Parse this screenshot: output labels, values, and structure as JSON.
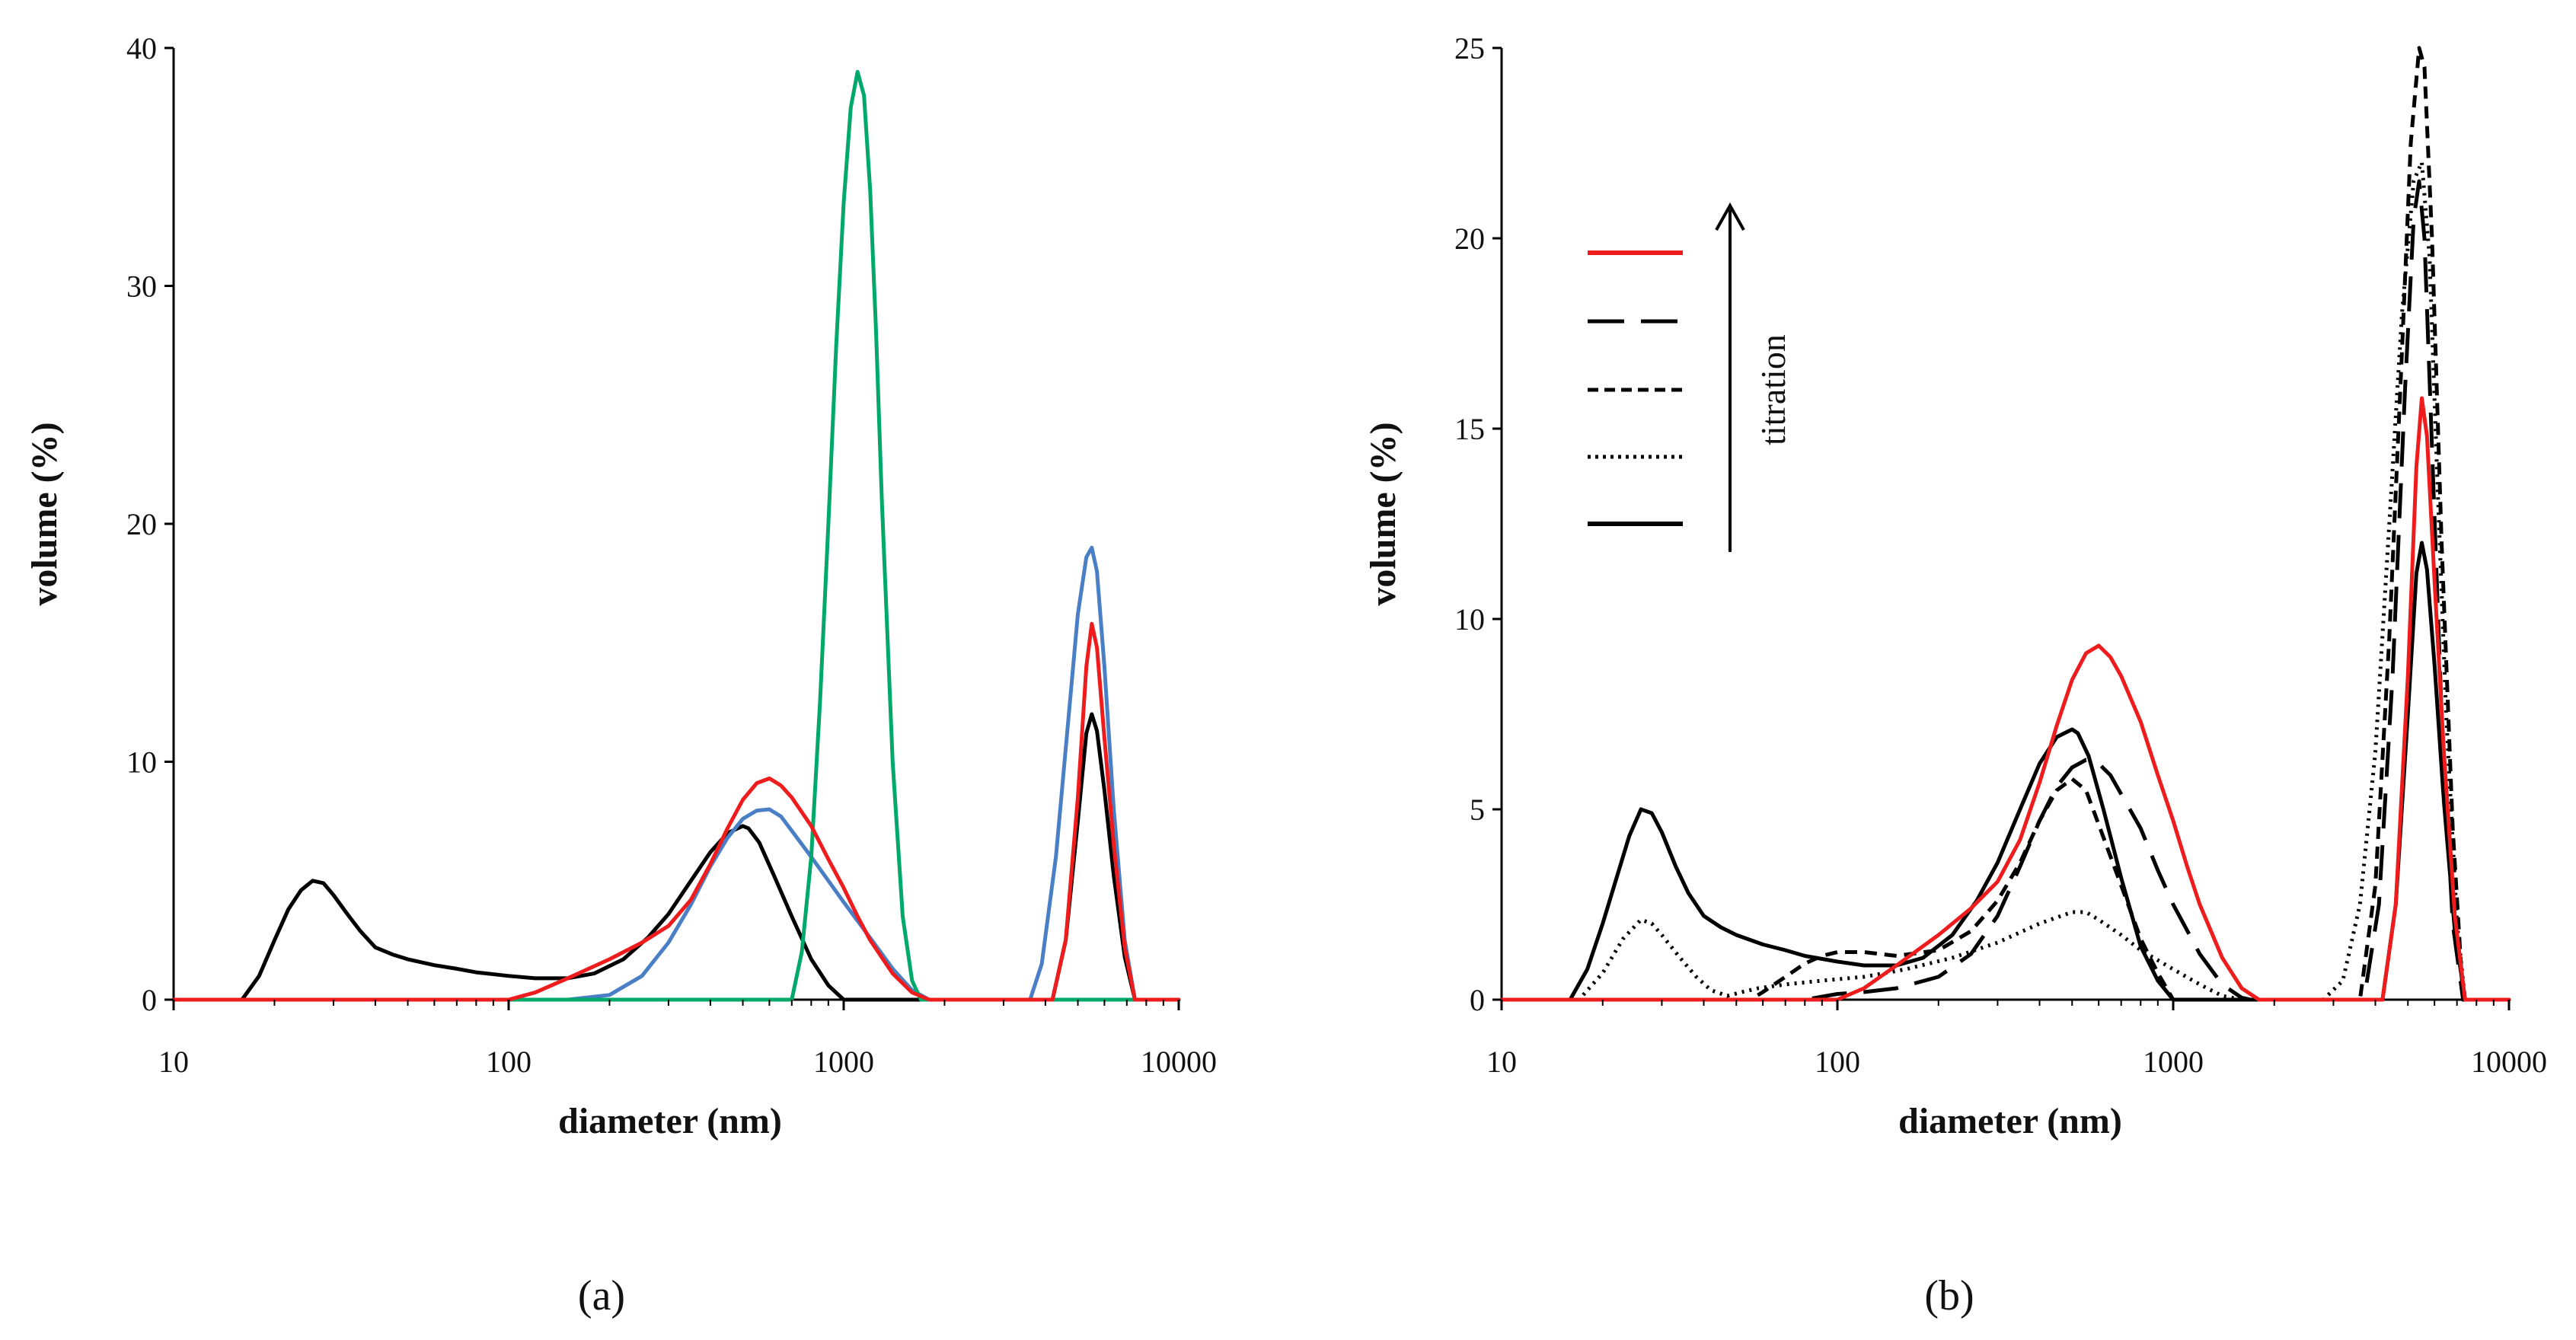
{
  "chart_data": [
    {
      "panel": "(a)",
      "type": "line",
      "xscale": "log",
      "xlabel": "diameter (nm)",
      "ylabel": "volume (%)",
      "xlim": [
        10,
        10000
      ],
      "ylim": [
        0,
        40
      ],
      "xticks": [
        10,
        100,
        1000,
        10000
      ],
      "xtick_labels": [
        "10",
        "100",
        "1000",
        "10000"
      ],
      "yticks": [
        0,
        10,
        20,
        30,
        40
      ],
      "ytick_labels": [
        "0",
        "10",
        "20",
        "30",
        "40"
      ],
      "series": [
        {
          "name": "black",
          "color": "#000000",
          "dash": "solid",
          "x": [
            10,
            16,
            18,
            20,
            22,
            24,
            26,
            28,
            30,
            33,
            36,
            40,
            45,
            50,
            60,
            70,
            80,
            100,
            120,
            150,
            180,
            220,
            260,
            300,
            350,
            400,
            450,
            500,
            520,
            560,
            620,
            700,
            800,
            900,
            1000,
            10000
          ],
          "y": [
            0,
            0,
            1.0,
            2.5,
            3.8,
            4.6,
            5.0,
            4.9,
            4.4,
            3.6,
            2.9,
            2.2,
            1.9,
            1.7,
            1.45,
            1.3,
            1.15,
            1.0,
            0.9,
            0.9,
            1.1,
            1.7,
            2.6,
            3.6,
            5.0,
            6.2,
            7.0,
            7.3,
            7.2,
            6.6,
            5.2,
            3.5,
            1.7,
            0.6,
            0,
            0
          ]
        },
        {
          "name": "black (peak 2)",
          "color": "#000000",
          "dash": "solid",
          "x": [
            4200,
            4600,
            5000,
            5300,
            5500,
            5700,
            6000,
            6400,
            6900,
            7400
          ],
          "y": [
            0,
            2.5,
            7.5,
            11.2,
            12.0,
            11.3,
            8.8,
            5.2,
            1.8,
            0
          ]
        },
        {
          "name": "blue",
          "color": "#4a7fc6",
          "dash": "solid",
          "x": [
            10,
            150,
            200,
            250,
            300,
            350,
            400,
            450,
            500,
            550,
            600,
            650,
            700,
            800,
            900,
            1000,
            1200,
            1400,
            1600,
            1800,
            3600,
            3900,
            4300,
            4700,
            5000,
            5300,
            5500,
            5700,
            6000,
            6400,
            6900,
            7400,
            10000
          ],
          "y": [
            0,
            0,
            0.2,
            1.0,
            2.4,
            4.0,
            5.6,
            6.8,
            7.6,
            7.95,
            8.0,
            7.7,
            7.1,
            6.0,
            5.0,
            4.1,
            2.6,
            1.3,
            0.4,
            0,
            0,
            1.5,
            6.0,
            12.0,
            16.2,
            18.6,
            19.0,
            18.0,
            14.0,
            8.0,
            2.5,
            0,
            0
          ]
        },
        {
          "name": "green",
          "color": "#00a86b",
          "dash": "solid",
          "x": [
            10,
            700,
            750,
            800,
            850,
            900,
            950,
            1000,
            1050,
            1100,
            1150,
            1200,
            1250,
            1300,
            1400,
            1500,
            1600,
            1700,
            10000
          ],
          "y": [
            0,
            0,
            2.0,
            6.0,
            12.5,
            20.0,
            27.5,
            33.5,
            37.5,
            39.0,
            38.0,
            34.0,
            28.0,
            21.0,
            10.0,
            3.5,
            0.8,
            0,
            0
          ]
        },
        {
          "name": "red",
          "color": "#ee1c1c",
          "dash": "solid",
          "x": [
            10,
            100,
            120,
            150,
            200,
            250,
            300,
            350,
            400,
            450,
            500,
            550,
            600,
            650,
            700,
            800,
            900,
            1000,
            1100,
            1200,
            1400,
            1600,
            1800,
            4200,
            4600,
            5000,
            5300,
            5500,
            5700,
            6000,
            6400,
            6900,
            7400,
            10000
          ],
          "y": [
            0,
            0,
            0.3,
            0.9,
            1.7,
            2.4,
            3.1,
            4.2,
            5.7,
            7.2,
            8.4,
            9.1,
            9.3,
            9.0,
            8.5,
            7.3,
            5.9,
            4.7,
            3.5,
            2.5,
            1.1,
            0.3,
            0,
            0,
            2.5,
            8.5,
            14.0,
            15.8,
            14.8,
            11.0,
            6.5,
            2.2,
            0,
            0
          ]
        }
      ]
    },
    {
      "panel": "(b)",
      "type": "line",
      "xscale": "log",
      "xlabel": "diameter (nm)",
      "ylabel": "volume (%)",
      "xlim": [
        10,
        10000
      ],
      "ylim": [
        0,
        25
      ],
      "xticks": [
        10,
        100,
        1000,
        10000
      ],
      "xtick_labels": [
        "10",
        "100",
        "1000",
        "10000"
      ],
      "yticks": [
        0,
        5,
        10,
        15,
        20,
        25
      ],
      "ytick_labels": [
        "0",
        "5",
        "10",
        "15",
        "20",
        "25"
      ],
      "legend": {
        "position": "top-left",
        "arrow_label": "titration",
        "entries": [
          {
            "color": "#ee1c1c",
            "dash": "solid"
          },
          {
            "color": "#000000",
            "dash": "long-dash"
          },
          {
            "color": "#000000",
            "dash": "short-dash"
          },
          {
            "color": "#000000",
            "dash": "dotted"
          },
          {
            "color": "#000000",
            "dash": "solid"
          }
        ]
      },
      "series": [
        {
          "name": "solid black",
          "color": "#000000",
          "dash": "solid",
          "x": [
            10,
            16,
            18,
            20,
            22,
            24,
            26,
            28,
            30,
            33,
            36,
            40,
            45,
            50,
            60,
            70,
            80,
            100,
            120,
            150,
            180,
            220,
            260,
            300,
            350,
            400,
            450,
            500,
            520,
            560,
            620,
            700,
            800,
            900,
            1000,
            4200,
            4600,
            5000,
            5300,
            5500,
            5700,
            6000,
            6400,
            6900,
            7400,
            10000
          ],
          "y": [
            0,
            0,
            0.8,
            2.0,
            3.2,
            4.3,
            5.0,
            4.9,
            4.4,
            3.5,
            2.8,
            2.2,
            1.9,
            1.7,
            1.45,
            1.3,
            1.15,
            1.0,
            0.9,
            0.9,
            1.1,
            1.7,
            2.6,
            3.6,
            5.0,
            6.2,
            6.9,
            7.1,
            7.0,
            6.4,
            5.0,
            3.2,
            1.4,
            0.5,
            0,
            0,
            2.5,
            7.5,
            11.2,
            12.0,
            11.3,
            8.8,
            5.2,
            1.8,
            0,
            0
          ]
        },
        {
          "name": "dotted",
          "color": "#000000",
          "dash": "dotted",
          "x": [
            10,
            17,
            20,
            23,
            26,
            28,
            30,
            34,
            38,
            42,
            47,
            52,
            58,
            70,
            90,
            120,
            160,
            220,
            300,
            400,
            500,
            550,
            600,
            700,
            800,
            1000,
            1200,
            1400,
            1600,
            2800,
            3200,
            3600,
            4000,
            4400,
            4800,
            5200,
            5500,
            5800,
            6100,
            6500,
            7000,
            7400,
            10000
          ],
          "y": [
            0,
            0,
            0.7,
            1.6,
            2.1,
            2.0,
            1.7,
            1.1,
            0.6,
            0.25,
            0.1,
            0.2,
            0.3,
            0.4,
            0.5,
            0.6,
            0.8,
            1.1,
            1.5,
            2.0,
            2.3,
            2.3,
            2.1,
            1.7,
            1.3,
            0.8,
            0.4,
            0.1,
            0,
            0,
            0.5,
            2.5,
            6.5,
            12.5,
            18.0,
            21.5,
            22.0,
            19.5,
            14.0,
            7.5,
            2.0,
            0,
            0
          ]
        },
        {
          "name": "short dash",
          "color": "#000000",
          "dash": "short-dash",
          "x": [
            10,
            55,
            60,
            70,
            80,
            90,
            100,
            120,
            150,
            200,
            250,
            300,
            350,
            400,
            450,
            500,
            550,
            600,
            700,
            800,
            900,
            1000,
            3600,
            4000,
            4400,
            4800,
            5100,
            5400,
            5600,
            5900,
            6300,
            6800,
            7300,
            10000
          ],
          "y": [
            0,
            0,
            0.2,
            0.6,
            0.95,
            1.15,
            1.25,
            1.25,
            1.15,
            1.3,
            1.8,
            2.6,
            3.6,
            4.7,
            5.5,
            5.8,
            5.5,
            4.6,
            3.0,
            1.6,
            0.7,
            0,
            0,
            3.0,
            9.5,
            17.0,
            22.5,
            25.0,
            24.5,
            20.0,
            12.0,
            4.5,
            0,
            0
          ]
        },
        {
          "name": "long dash",
          "color": "#000000",
          "dash": "long-dash",
          "x": [
            10,
            80,
            100,
            120,
            150,
            200,
            250,
            300,
            350,
            400,
            450,
            500,
            550,
            600,
            650,
            700,
            800,
            900,
            1000,
            1200,
            1400,
            1600,
            1700,
            3700,
            4100,
            4500,
            4900,
            5200,
            5400,
            5600,
            5900,
            6300,
            6800,
            7300,
            10000
          ],
          "y": [
            0,
            0,
            0.15,
            0.2,
            0.3,
            0.6,
            1.2,
            2.2,
            3.5,
            4.7,
            5.6,
            6.1,
            6.3,
            6.2,
            5.9,
            5.4,
            4.5,
            3.4,
            2.5,
            1.2,
            0.4,
            0.05,
            0,
            0,
            2.5,
            8.5,
            16.0,
            20.5,
            21.5,
            20.0,
            14.5,
            7.5,
            2.0,
            0,
            0
          ]
        },
        {
          "name": "red",
          "color": "#ee1c1c",
          "dash": "solid",
          "x": [
            10,
            100,
            120,
            150,
            200,
            250,
            300,
            350,
            400,
            450,
            500,
            550,
            600,
            650,
            700,
            800,
            900,
            1000,
            1100,
            1200,
            1400,
            1600,
            1800,
            4200,
            4600,
            5000,
            5300,
            5500,
            5700,
            6000,
            6400,
            6900,
            7400,
            10000
          ],
          "y": [
            0,
            0,
            0.3,
            0.9,
            1.7,
            2.4,
            3.1,
            4.2,
            5.7,
            7.2,
            8.4,
            9.1,
            9.3,
            9.0,
            8.5,
            7.3,
            5.9,
            4.7,
            3.5,
            2.5,
            1.1,
            0.3,
            0,
            0,
            2.5,
            8.5,
            14.0,
            15.8,
            14.8,
            11.0,
            6.5,
            2.2,
            0,
            0
          ]
        }
      ]
    }
  ]
}
